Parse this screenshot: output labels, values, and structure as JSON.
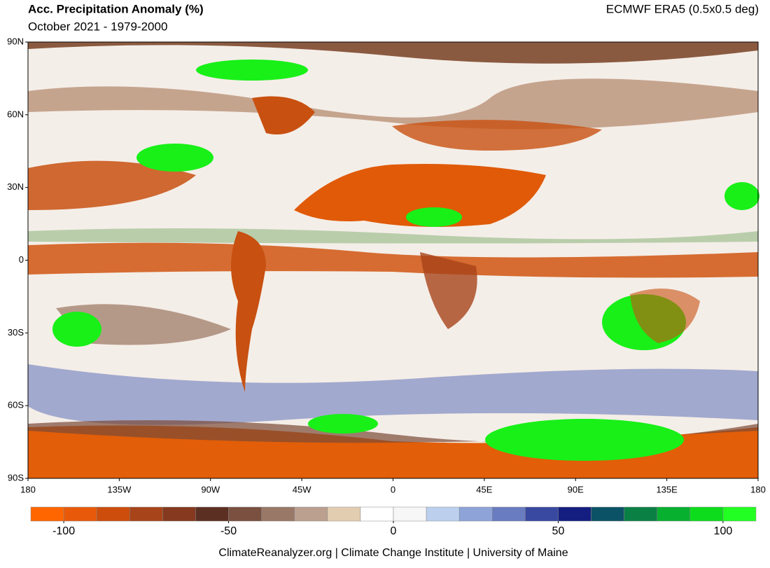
{
  "map": {
    "title": "Acc. Precipitation Anomaly (%)",
    "subtitle": "October 2021 - 1979-2000",
    "source": "ECMWF ERA5 (0.5x0.5 deg)",
    "footer": "ClimateReanalyzer.org | Climate Change Institute | University of Maine",
    "xlim": [
      -180,
      180
    ],
    "ylim": [
      -90,
      90
    ],
    "xticks": [
      {
        "value": -180,
        "label": "180"
      },
      {
        "value": -135,
        "label": "135W"
      },
      {
        "value": -90,
        "label": "90W"
      },
      {
        "value": -45,
        "label": "45W"
      },
      0,
      {
        "value": 45,
        "label": "45E"
      },
      {
        "value": 90,
        "label": "90E"
      },
      {
        "value": 135,
        "label": "135E"
      },
      {
        "value": 180,
        "label": "180"
      }
    ],
    "yticks": [
      {
        "value": 90,
        "label": "90N"
      },
      {
        "value": 60,
        "label": "60N"
      },
      {
        "value": 30,
        "label": "30N"
      },
      0,
      {
        "value": -30,
        "label": "30S"
      },
      {
        "value": -60,
        "label": "60S"
      },
      {
        "value": -90,
        "label": "90S"
      }
    ],
    "colorbar": {
      "range": [
        -110,
        110
      ],
      "ticks": [
        -100,
        -50,
        0,
        50,
        100
      ],
      "colors": [
        "#ff6600",
        "#e85a0a",
        "#cc4d0c",
        "#a8441a",
        "#85391e",
        "#5c2f23",
        "#7a5040",
        "#9a7868",
        "#bba090",
        "#e3cdb0",
        "#ffffff",
        "#f7f7f7",
        "#bcd0ee",
        "#8ea4d8",
        "#6a7cc0",
        "#3949a0",
        "#141e80",
        "#0c5266",
        "#0a8044",
        "#08b030",
        "#0ddc1c",
        "#22ff22"
      ]
    }
  }
}
